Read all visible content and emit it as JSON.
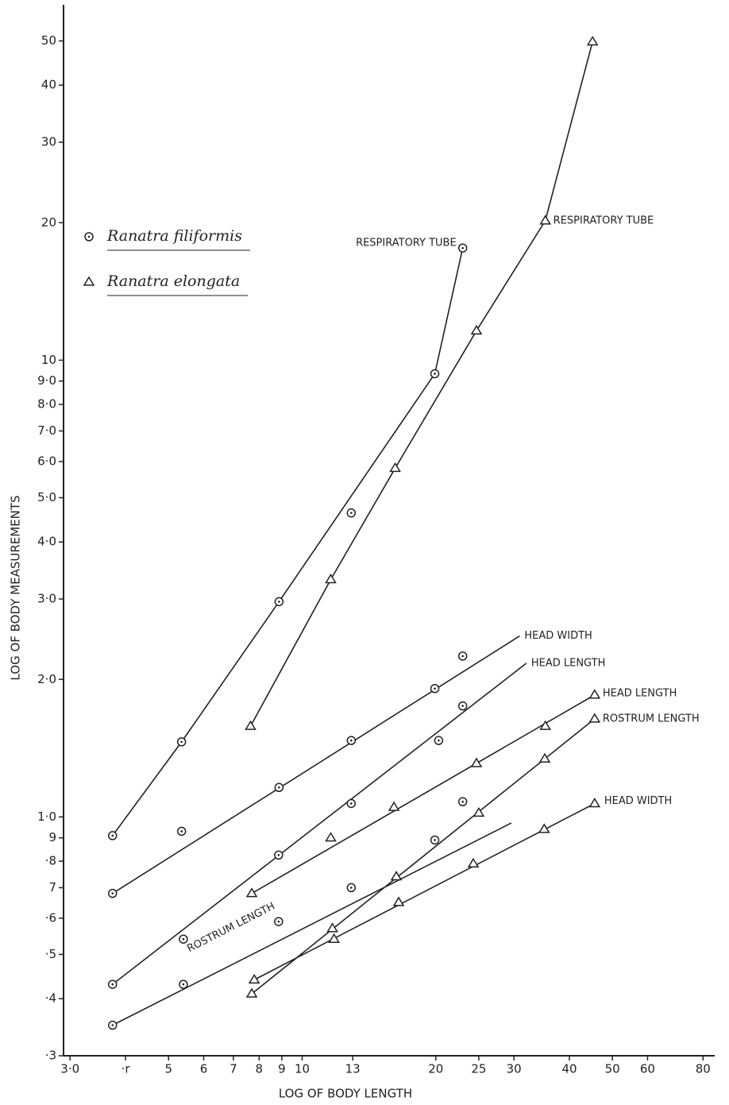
{
  "chart_data": {
    "type": "scatter",
    "x_label": "LOG OF BODY LENGTH",
    "y_label": "LOG OF BODY MEASUREMENTS",
    "xscale": "log",
    "yscale": "log",
    "xlim": [
      2.9,
      85
    ],
    "ylim": [
      0.3,
      60
    ],
    "xticks": [
      {
        "value": 3,
        "label": "3·0"
      },
      {
        "value": 4,
        "label": "·r"
      },
      5,
      6,
      7,
      8,
      9,
      10,
      13,
      20,
      25,
      30,
      40,
      50,
      60,
      80
    ],
    "yticks": [
      {
        "value": 0.3,
        "label": "·3"
      },
      {
        "value": 0.4,
        "label": "·4"
      },
      {
        "value": 0.5,
        "label": "·5"
      },
      {
        "value": 0.6,
        "label": "·6"
      },
      {
        "value": 0.7,
        "label": "7"
      },
      {
        "value": 0.8,
        "label": "·8"
      },
      {
        "value": 0.9,
        "label": "9"
      },
      {
        "value": 1,
        "label": "1·0"
      },
      {
        "value": 2,
        "label": "2·0"
      },
      {
        "value": 3,
        "label": "3·0"
      },
      {
        "value": 4,
        "label": "4·0"
      },
      {
        "value": 5,
        "label": "5·0"
      },
      {
        "value": 6,
        "label": "6·0"
      },
      {
        "value": 7,
        "label": "7·0"
      },
      {
        "value": 8,
        "label": "8·0"
      },
      {
        "value": 9,
        "label": "9·0"
      },
      10,
      20,
      30,
      40,
      50
    ],
    "color": "#222222",
    "series": [
      {
        "name": "Ranatra filiformis",
        "marker": "circle",
        "groups": [
          {
            "label": "RESPIRATORY TUBE",
            "x": [
              3.74,
              5.35,
              8.87,
              12.9,
              19.9,
              23.0
            ],
            "values": [
              0.91,
              1.46,
              2.96,
              4.63,
              9.34,
              17.6
            ],
            "line_x": [
              3.74,
              5.35,
              8.87,
              19.9,
              23.0
            ],
            "line_values": [
              0.91,
              1.46,
              2.96,
              9.34,
              17.6
            ]
          },
          {
            "label": "HEAD WIDTH",
            "x": [
              3.74,
              5.35,
              8.87,
              12.9,
              19.9,
              23.0
            ],
            "values": [
              0.68,
              0.93,
              1.16,
              1.47,
              1.91,
              2.25
            ],
            "line_x": [
              3.74,
              30.9
            ],
            "line_values": [
              0.68,
              2.49
            ]
          },
          {
            "label": "HEAD LENGTH",
            "x": [
              3.74,
              5.4,
              8.85,
              12.9,
              20.3,
              23.0
            ],
            "values": [
              0.43,
              0.54,
              0.825,
              1.07,
              1.47,
              1.75
            ],
            "line_x": [
              3.74,
              32.0
            ],
            "line_values": [
              0.43,
              2.17
            ]
          },
          {
            "label": "ROSTRUM LENGTH",
            "x": [
              3.74,
              5.4,
              8.85,
              12.9,
              19.9,
              23.0
            ],
            "values": [
              0.35,
              0.43,
              0.59,
              0.7,
              0.89,
              1.08
            ],
            "line_x": [
              3.74,
              29.6
            ],
            "line_values": [
              0.35,
              0.97
            ]
          }
        ]
      },
      {
        "name": "Ranatra elongata",
        "marker": "triangle",
        "groups": [
          {
            "label": "RESPIRATORY TUBE",
            "x": [
              7.65,
              11.6,
              16.2,
              24.7,
              35.3,
              45.1
            ],
            "values": [
              1.58,
              3.31,
              5.8,
              11.6,
              20.2,
              49.8
            ],
            "line_x": [
              7.65,
              11.6,
              16.2,
              24.7,
              35.3,
              45.1
            ],
            "line_values": [
              1.58,
              3.31,
              5.8,
              11.6,
              20.2,
              49.8
            ]
          },
          {
            "label": "HEAD LENGTH",
            "x": [
              7.7,
              11.6,
              16.1,
              24.7,
              35.3,
              45.6
            ],
            "values": [
              0.68,
              0.9,
              1.05,
              1.31,
              1.58,
              1.85
            ],
            "line_x": [
              7.7,
              45.6
            ],
            "line_values": [
              0.68,
              1.85
            ]
          },
          {
            "label": "ROSTRUM LENGTH",
            "x": [
              7.7,
              11.7,
              16.3,
              25.0,
              35.2,
              45.6
            ],
            "values": [
              0.41,
              0.57,
              0.74,
              1.02,
              1.34,
              1.64
            ],
            "line_x": [
              7.7,
              45.6
            ],
            "line_values": [
              0.41,
              1.64
            ]
          },
          {
            "label": "HEAD WIDTH",
            "x": [
              7.8,
              11.8,
              16.5,
              24.3,
              35.1,
              45.6
            ],
            "values": [
              0.44,
              0.54,
              0.65,
              0.79,
              0.94,
              1.07
            ],
            "line_x": [
              7.8,
              45.6
            ],
            "line_values": [
              0.44,
              1.07
            ]
          }
        ]
      }
    ]
  }
}
